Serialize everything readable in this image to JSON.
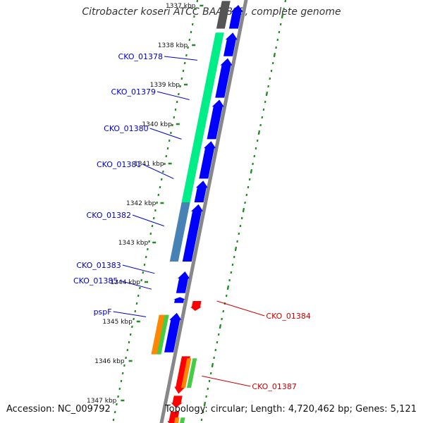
{
  "title": "Citrobacter koseri ATCC BAA-895, complete genome",
  "accession_text": "Accession: NC_009792",
  "summary_text": "Topology: circular; Length: 4,720,462 bp; Genes: 5,121",
  "colors": {
    "forward_cds": "#0000ff",
    "reverse_cds": "#ff0000",
    "operon_green": "#00ee88",
    "operon_steelblue": "#4682b4",
    "operon_dark": "#555555",
    "orange_feature": "#ff8800",
    "green_feature": "#44cc44",
    "tick_mark": "#228b22",
    "backbone": "#888888",
    "forward_label": "#0000cc",
    "reverse_label": "#cc0000"
  },
  "ticks": [
    "1337 kbp",
    "1338 kbp",
    "1339 kbp",
    "1340 kbp",
    "1341 kbp",
    "1342 kbp",
    "1343 kbp",
    "1344 kbp",
    "1345 kbp",
    "1346 kbp",
    "1347 kbp"
  ],
  "gene_labels": [
    {
      "name": "CKO_01378",
      "strand": "forward",
      "kbp": 1338.4
    },
    {
      "name": "CKO_01379",
      "strand": "forward",
      "kbp": 1339.4
    },
    {
      "name": "CKO_01380",
      "strand": "forward",
      "kbp": 1340.4
    },
    {
      "name": "CKO_01381",
      "strand": "forward",
      "kbp": 1341.4
    },
    {
      "name": "CKO_01382",
      "strand": "forward",
      "kbp": 1342.6
    },
    {
      "name": "CKO_01383",
      "strand": "forward",
      "kbp": 1343.8
    },
    {
      "name": "CKO_01385",
      "strand": "forward",
      "kbp": 1344.2
    },
    {
      "name": "pspF",
      "strand": "forward",
      "kbp": 1344.9
    },
    {
      "name": "CKO_01384",
      "strand": "reverse",
      "kbp": 1344.5
    },
    {
      "name": "CKO_01387",
      "strand": "reverse",
      "kbp": 1346.4
    }
  ],
  "features": [
    {
      "track": "f1",
      "start": 1336.9,
      "end": 1337.6,
      "color": "operon_dark",
      "arrow": false
    },
    {
      "track": "f1",
      "start": 1337.7,
      "end": 1342.0,
      "color": "operon_green",
      "arrow": false
    },
    {
      "track": "f1",
      "start": 1342.0,
      "end": 1343.5,
      "color": "operon_steelblue",
      "arrow": false
    },
    {
      "track": "f2",
      "start": 1337.0,
      "end": 1337.6,
      "color": "forward_cds",
      "arrow": true
    },
    {
      "track": "f2",
      "start": 1337.7,
      "end": 1338.3,
      "color": "forward_cds",
      "arrow": true
    },
    {
      "track": "f2",
      "start": 1338.35,
      "end": 1339.35,
      "color": "forward_cds",
      "arrow": true
    },
    {
      "track": "f2",
      "start": 1339.4,
      "end": 1340.4,
      "color": "forward_cds",
      "arrow": true
    },
    {
      "track": "f2",
      "start": 1340.45,
      "end": 1341.4,
      "color": "forward_cds",
      "arrow": true
    },
    {
      "track": "f2",
      "start": 1341.45,
      "end": 1342.0,
      "color": "forward_cds",
      "arrow": true
    },
    {
      "track": "f2",
      "start": 1342.05,
      "end": 1343.5,
      "color": "forward_cds",
      "arrow": true
    },
    {
      "track": "f2",
      "start": 1343.75,
      "end": 1344.3,
      "color": "forward_cds",
      "arrow": true
    },
    {
      "track": "f2",
      "start": 1344.4,
      "end": 1344.55,
      "color": "forward_cds",
      "arrow": true
    },
    {
      "track": "f2",
      "start": 1344.8,
      "end": 1345.8,
      "color": "forward_cds",
      "arrow": true
    },
    {
      "track": "f1",
      "start": 1344.85,
      "end": 1345.85,
      "color": "orange_feature",
      "arrow": false
    },
    {
      "track": "f1b",
      "start": 1344.85,
      "end": 1345.85,
      "color": "green_feature",
      "arrow": false
    },
    {
      "track": "r1",
      "start": 1344.5,
      "end": 1344.75,
      "color": "reverse_cds",
      "arrow": true
    },
    {
      "track": "r1",
      "start": 1345.9,
      "end": 1346.85,
      "color": "reverse_cds",
      "arrow": true
    },
    {
      "track": "r1",
      "start": 1346.9,
      "end": 1347.2,
      "color": "reverse_cds",
      "arrow": true
    },
    {
      "track": "r1",
      "start": 1347.3,
      "end": 1347.7,
      "color": "reverse_cds",
      "arrow": true
    },
    {
      "track": "r2",
      "start": 1345.95,
      "end": 1346.7,
      "color": "orange_feature",
      "arrow": false
    },
    {
      "track": "r2b",
      "start": 1345.95,
      "end": 1346.7,
      "color": "green_feature",
      "arrow": false
    },
    {
      "track": "r2",
      "start": 1347.45,
      "end": 1347.6,
      "color": "orange_feature",
      "arrow": false
    },
    {
      "track": "r2b",
      "start": 1347.45,
      "end": 1347.6,
      "color": "green_feature",
      "arrow": false
    }
  ]
}
